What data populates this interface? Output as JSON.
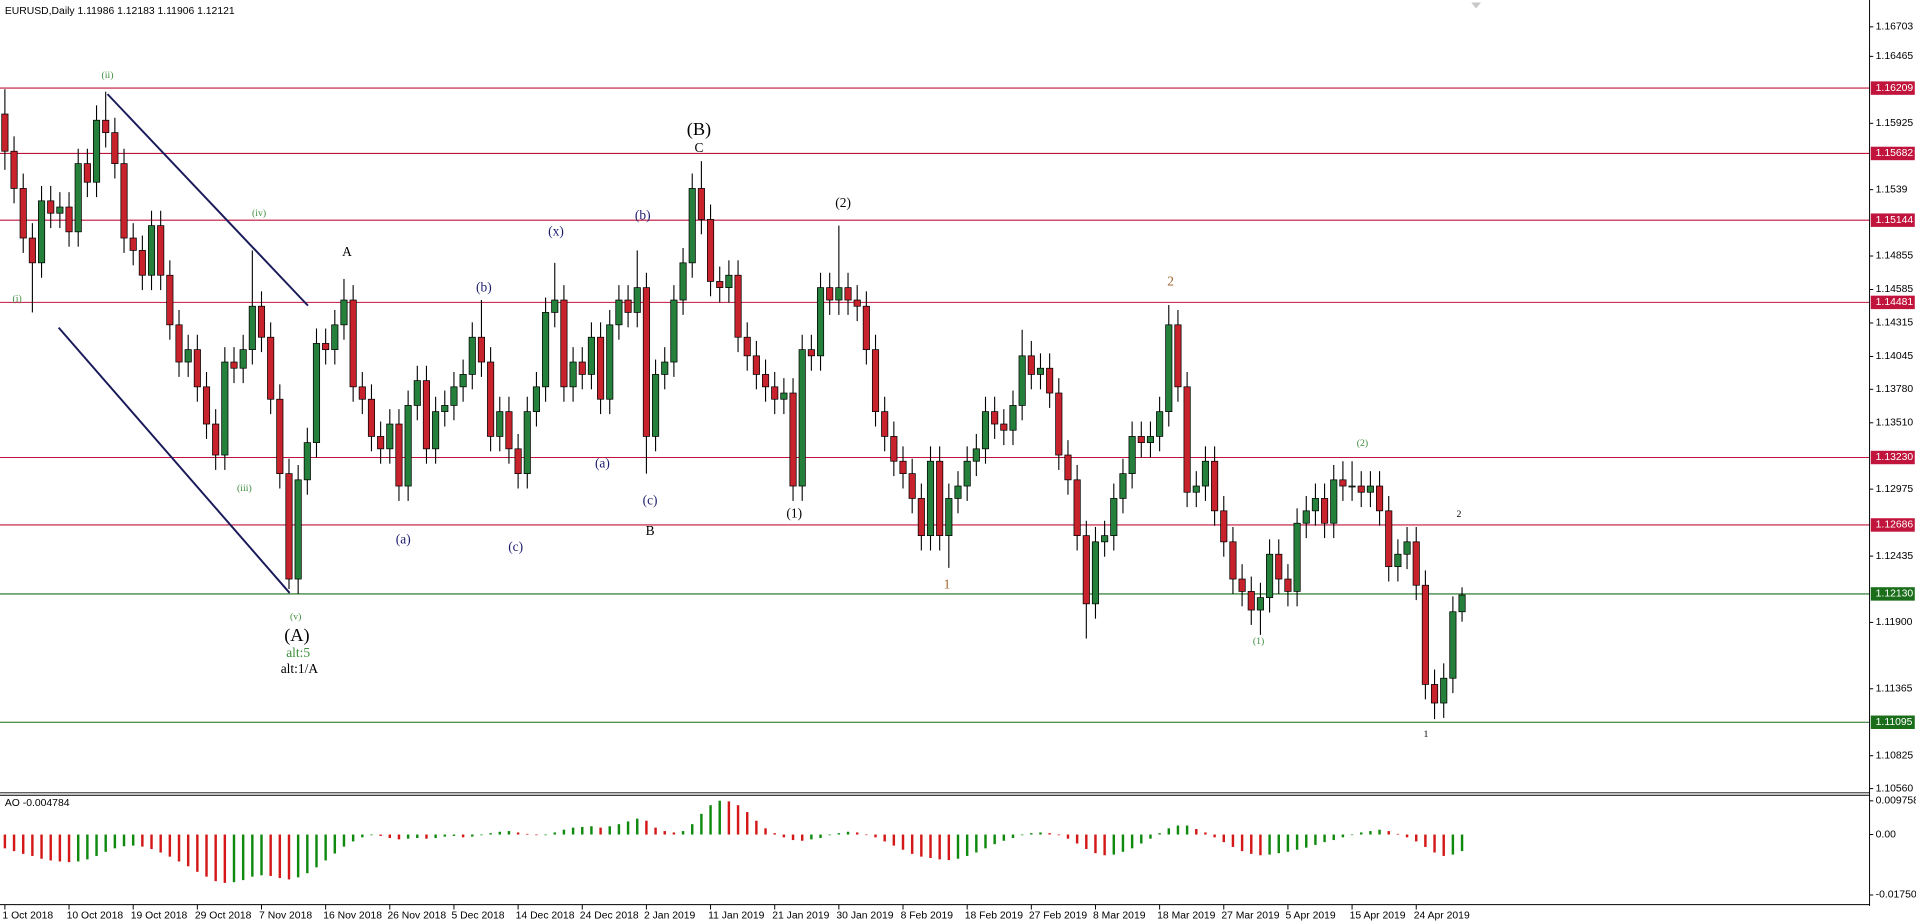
{
  "chart_data": [
    {
      "type": "candlestick",
      "title": "EURUSD,Daily",
      "up_color": "#24803a",
      "down_color": "#c8232c",
      "open": [
        1.16,
        1.157,
        1.154,
        1.15,
        1.148,
        1.153,
        1.152,
        1.1525,
        1.1505,
        1.156,
        1.1545,
        1.1595,
        1.1585,
        1.156,
        1.15,
        1.149,
        1.147,
        1.151,
        1.147,
        1.143,
        1.14,
        1.141,
        1.138,
        1.135,
        1.1325,
        1.14,
        1.1395,
        1.141,
        1.1445,
        1.142,
        1.137,
        1.131,
        1.1225,
        1.1305,
        1.1335,
        1.1415,
        1.141,
        1.143,
        1.145,
        1.138,
        1.137,
        1.134,
        1.133,
        1.135,
        1.13,
        1.1365,
        1.1385,
        1.133,
        1.136,
        1.1365,
        1.138,
        1.139,
        1.142,
        1.14,
        1.134,
        1.136,
        1.133,
        1.131,
        1.136,
        1.138,
        1.144,
        1.145,
        1.138,
        1.14,
        1.139,
        1.142,
        1.137,
        1.143,
        1.145,
        1.144,
        1.146,
        1.134,
        1.139,
        1.14,
        1.145,
        1.148,
        1.154,
        1.1515,
        1.1465,
        1.146,
        1.147,
        1.142,
        1.1405,
        1.139,
        1.138,
        1.137,
        1.1375,
        1.13,
        1.141,
        1.1405,
        1.146,
        1.145,
        1.146,
        1.145,
        1.1445,
        1.141,
        1.136,
        1.134,
        1.132,
        1.131,
        1.129,
        1.126,
        1.132,
        1.126,
        1.129,
        1.13,
        1.132,
        1.133,
        1.136,
        1.135,
        1.1345,
        1.1365,
        1.1405,
        1.139,
        1.1395,
        1.1375,
        1.1325,
        1.1305,
        1.126,
        1.1205,
        1.1255,
        1.126,
        1.129,
        1.131,
        1.134,
        1.1335,
        1.134,
        1.136,
        1.143,
        1.138,
        1.1295,
        1.13,
        1.132,
        1.128,
        1.1255,
        1.1225,
        1.1215,
        1.12,
        1.121,
        1.1245,
        1.1225,
        1.1215,
        1.127,
        1.128,
        1.129,
        1.127,
        1.1305,
        1.13,
        1.13,
        1.1295,
        1.13,
        1.128,
        1.1235,
        1.1245,
        1.1255,
        1.122,
        1.114,
        1.1125,
        1.1145,
        1.11986
      ],
      "high": [
        1.162,
        1.1582,
        1.1552,
        1.1512,
        1.1542,
        1.1542,
        1.1537,
        1.1537,
        1.1572,
        1.1572,
        1.1607,
        1.1618,
        1.1597,
        1.1572,
        1.1512,
        1.1502,
        1.1522,
        1.1522,
        1.1482,
        1.1442,
        1.1422,
        1.1422,
        1.1392,
        1.1362,
        1.1412,
        1.1412,
        1.1422,
        1.149,
        1.1457,
        1.1432,
        1.1382,
        1.1322,
        1.1317,
        1.1347,
        1.1427,
        1.1427,
        1.1442,
        1.1467,
        1.1462,
        1.1392,
        1.1382,
        1.1352,
        1.1362,
        1.1362,
        1.1377,
        1.1397,
        1.1397,
        1.1372,
        1.1377,
        1.1392,
        1.1402,
        1.1432,
        1.145,
        1.1412,
        1.1372,
        1.1372,
        1.1342,
        1.1372,
        1.1392,
        1.1452,
        1.148,
        1.1462,
        1.1412,
        1.1412,
        1.1432,
        1.1432,
        1.1442,
        1.1462,
        1.1462,
        1.149,
        1.1472,
        1.1402,
        1.1412,
        1.1462,
        1.1492,
        1.1552,
        1.1562,
        1.1527,
        1.1477,
        1.1482,
        1.1482,
        1.1432,
        1.1417,
        1.1402,
        1.1392,
        1.1387,
        1.1387,
        1.1422,
        1.1422,
        1.1472,
        1.1472,
        1.151,
        1.1472,
        1.1462,
        1.1457,
        1.1422,
        1.1372,
        1.1352,
        1.1332,
        1.1322,
        1.1302,
        1.1332,
        1.1332,
        1.1302,
        1.1312,
        1.1332,
        1.1342,
        1.1372,
        1.1372,
        1.1362,
        1.1377,
        1.1426,
        1.1417,
        1.1407,
        1.1407,
        1.1387,
        1.1337,
        1.1317,
        1.1272,
        1.1267,
        1.1272,
        1.1302,
        1.1322,
        1.1352,
        1.1352,
        1.1352,
        1.1372,
        1.1446,
        1.1442,
        1.1392,
        1.1312,
        1.1332,
        1.1332,
        1.1292,
        1.1267,
        1.1237,
        1.1227,
        1.1222,
        1.1257,
        1.1257,
        1.1237,
        1.1282,
        1.1292,
        1.1302,
        1.1302,
        1.1317,
        1.132,
        1.132,
        1.1312,
        1.1312,
        1.1312,
        1.1292,
        1.1257,
        1.1267,
        1.1267,
        1.1232,
        1.1152,
        1.1157,
        1.1211,
        1.12183
      ],
      "low": [
        1.1555,
        1.1528,
        1.1488,
        1.144,
        1.1468,
        1.1508,
        1.1508,
        1.1493,
        1.1493,
        1.1533,
        1.1533,
        1.1573,
        1.1548,
        1.1488,
        1.1478,
        1.1458,
        1.1458,
        1.1458,
        1.1418,
        1.1388,
        1.1388,
        1.1368,
        1.1338,
        1.1313,
        1.1313,
        1.1383,
        1.1383,
        1.1398,
        1.1408,
        1.1358,
        1.1298,
        1.1217,
        1.1213,
        1.1293,
        1.1323,
        1.1398,
        1.1398,
        1.1418,
        1.1368,
        1.1358,
        1.1328,
        1.1318,
        1.1318,
        1.1288,
        1.1288,
        1.1353,
        1.1318,
        1.1318,
        1.1348,
        1.1353,
        1.1368,
        1.1378,
        1.1388,
        1.1328,
        1.1328,
        1.1318,
        1.1298,
        1.1298,
        1.1348,
        1.1368,
        1.1428,
        1.1368,
        1.1368,
        1.1378,
        1.1378,
        1.1358,
        1.1358,
        1.1418,
        1.1428,
        1.1428,
        1.131,
        1.1328,
        1.1378,
        1.1388,
        1.1438,
        1.1468,
        1.1503,
        1.1453,
        1.1448,
        1.1448,
        1.1408,
        1.1393,
        1.1378,
        1.1368,
        1.1358,
        1.1358,
        1.1288,
        1.1288,
        1.1393,
        1.1393,
        1.1438,
        1.1438,
        1.1438,
        1.1433,
        1.1398,
        1.1348,
        1.1328,
        1.1308,
        1.1298,
        1.1278,
        1.1248,
        1.1248,
        1.1248,
        1.1234,
        1.1278,
        1.1288,
        1.1308,
        1.1318,
        1.1338,
        1.1333,
        1.1333,
        1.1353,
        1.1378,
        1.1378,
        1.1363,
        1.1313,
        1.1293,
        1.1248,
        1.1177,
        1.1193,
        1.1243,
        1.1248,
        1.1278,
        1.1298,
        1.1323,
        1.1323,
        1.1328,
        1.1348,
        1.1368,
        1.1283,
        1.1283,
        1.1288,
        1.1268,
        1.1243,
        1.1213,
        1.1203,
        1.1188,
        1.118,
        1.1198,
        1.1213,
        1.1203,
        1.1203,
        1.1258,
        1.1268,
        1.1258,
        1.1258,
        1.1288,
        1.1288,
        1.1283,
        1.1283,
        1.1268,
        1.1223,
        1.1223,
        1.1233,
        1.1208,
        1.1128,
        1.1112,
        1.1113,
        1.1133,
        1.11906
      ],
      "close": [
        1.157,
        1.154,
        1.15,
        1.148,
        1.153,
        1.152,
        1.1525,
        1.1505,
        1.156,
        1.1545,
        1.1595,
        1.1585,
        1.156,
        1.15,
        1.149,
        1.147,
        1.151,
        1.147,
        1.143,
        1.14,
        1.141,
        1.138,
        1.135,
        1.1325,
        1.14,
        1.1395,
        1.141,
        1.1445,
        1.142,
        1.137,
        1.131,
        1.1225,
        1.1305,
        1.1335,
        1.1415,
        1.141,
        1.143,
        1.145,
        1.138,
        1.137,
        1.134,
        1.133,
        1.135,
        1.13,
        1.1365,
        1.1385,
        1.133,
        1.136,
        1.1365,
        1.138,
        1.139,
        1.142,
        1.14,
        1.134,
        1.136,
        1.133,
        1.131,
        1.136,
        1.138,
        1.144,
        1.145,
        1.138,
        1.14,
        1.139,
        1.142,
        1.137,
        1.143,
        1.145,
        1.144,
        1.146,
        1.134,
        1.139,
        1.14,
        1.145,
        1.148,
        1.154,
        1.1515,
        1.1465,
        1.146,
        1.147,
        1.142,
        1.1405,
        1.139,
        1.138,
        1.137,
        1.1375,
        1.13,
        1.141,
        1.1405,
        1.146,
        1.145,
        1.146,
        1.145,
        1.1445,
        1.141,
        1.136,
        1.134,
        1.132,
        1.131,
        1.129,
        1.126,
        1.132,
        1.126,
        1.129,
        1.13,
        1.132,
        1.133,
        1.136,
        1.135,
        1.1345,
        1.1365,
        1.1405,
        1.139,
        1.1395,
        1.1375,
        1.1325,
        1.1305,
        1.126,
        1.1205,
        1.1255,
        1.126,
        1.129,
        1.131,
        1.134,
        1.1335,
        1.134,
        1.136,
        1.143,
        1.138,
        1.1295,
        1.13,
        1.132,
        1.128,
        1.1255,
        1.1225,
        1.1215,
        1.12,
        1.121,
        1.1245,
        1.1225,
        1.1215,
        1.127,
        1.128,
        1.129,
        1.127,
        1.1305,
        1.13,
        1.13,
        1.1295,
        1.13,
        1.128,
        1.1235,
        1.1245,
        1.1255,
        1.122,
        1.114,
        1.1125,
        1.1145,
        1.11986,
        1.12121
      ],
      "ylim": [
        1.10531,
        1.1689
      ],
      "yticks": [
        1.16703,
        1.16465,
        1.15925,
        1.1539,
        1.14855,
        1.14585,
        1.14315,
        1.14045,
        {
          "value": 1.1378,
          "label": "1.13780"
        },
        {
          "value": 1.1351,
          "label": "1.13510"
        },
        1.12975,
        1.12435,
        {
          "value": 1.119,
          "label": "1.11900"
        },
        1.11365,
        1.10825,
        {
          "value": 1.1056,
          "label": "1.10560"
        }
      ],
      "xticks": [
        {
          "value": 0,
          "label": "1 Oct 2018"
        },
        {
          "value": 7,
          "label": "10 Oct 2018"
        },
        {
          "value": 14,
          "label": "19 Oct 2018"
        },
        {
          "value": 21,
          "label": "29 Oct 2018"
        },
        {
          "value": 28,
          "label": "7 Nov 2018"
        },
        {
          "value": 35,
          "label": "16 Nov 2018"
        },
        {
          "value": 42,
          "label": "26 Nov 2018"
        },
        {
          "value": 49,
          "label": "5 Dec 2018"
        },
        {
          "value": 56,
          "label": "14 Dec 2018"
        },
        {
          "value": 63,
          "label": "24 Dec 2018"
        },
        {
          "value": 70,
          "label": "2 Jan 2019"
        },
        {
          "value": 77,
          "label": "11 Jan 2019"
        },
        {
          "value": 84,
          "label": "21 Jan 2019"
        },
        {
          "value": 91,
          "label": "30 Jan 2019"
        },
        {
          "value": 98,
          "label": "8 Feb 2019"
        },
        {
          "value": 105,
          "label": "18 Feb 2019"
        },
        {
          "value": 112,
          "label": "27 Feb 2019"
        },
        {
          "value": 119,
          "label": "8 Mar 2019"
        },
        {
          "value": 126,
          "label": "18 Mar 2019"
        },
        {
          "value": 133,
          "label": "27 Mar 2019"
        },
        {
          "value": 140,
          "label": "5 Apr 2019"
        },
        {
          "value": 147,
          "label": "15 Apr 2019"
        },
        {
          "value": 154,
          "label": "24 Apr 2019"
        }
      ],
      "levels": [
        {
          "value": 1.16209,
          "color": "#c0143c"
        },
        {
          "value": 1.15682,
          "color": "#c0143c"
        },
        {
          "value": 1.15144,
          "color": "#c0143c"
        },
        {
          "value": 1.14481,
          "color": "#c0143c"
        },
        {
          "value": 1.1323,
          "label": "1.13230",
          "color": "#c0143c"
        },
        {
          "value": 1.12686,
          "color": "#c0143c"
        },
        {
          "value": 1.1213,
          "label": "1.12130",
          "color": "#1a6e1a"
        },
        {
          "value": 1.11095,
          "color": "#1a6e1a"
        }
      ],
      "annotations": [
        {
          "text": "(i)",
          "color": "#3c8c3c"
        },
        {
          "text": "(ii)",
          "color": "#3c8c3c"
        },
        {
          "text": "(iii)",
          "color": "#3c8c3c"
        },
        {
          "text": "(iv)",
          "color": "#3c8c3c"
        },
        {
          "text": "(v)",
          "color": "#3c8c3c"
        },
        {
          "text": "(A)",
          "color": "#000000"
        },
        {
          "text": "alt:5",
          "color": "#3c8c3c"
        },
        {
          "text": "alt:1/A",
          "color": "#000000"
        },
        {
          "text": "A",
          "color": "#000000"
        },
        {
          "text": "(a)",
          "color": "#1c1c6c"
        },
        {
          "text": "(b)",
          "color": "#1c1c6c"
        },
        {
          "text": "(c)",
          "color": "#1c1c6c"
        },
        {
          "text": "(x)",
          "color": "#1c1c6c"
        },
        {
          "text": "(a)",
          "color": "#1c1c6c"
        },
        {
          "text": "(b)",
          "color": "#1c1c6c"
        },
        {
          "text": "(c)",
          "color": "#1c1c6c"
        },
        {
          "text": "B",
          "color": "#000000"
        },
        {
          "text": "(B)",
          "color": "#000000"
        },
        {
          "text": "C",
          "color": "#000000"
        },
        {
          "text": "(1)",
          "color": "#000000"
        },
        {
          "text": "(2)",
          "color": "#000000"
        },
        {
          "text": "1",
          "color": "#a0642c"
        },
        {
          "text": "2",
          "color": "#a0642c"
        },
        {
          "text": "(1)",
          "color": "#3c8c3c"
        },
        {
          "text": "(2)",
          "color": "#3c8c3c"
        },
        {
          "text": "1",
          "color": "#000000"
        },
        {
          "text": "2",
          "color": "#000000"
        }
      ]
    },
    {
      "type": "bar",
      "title": "AO",
      "up_color": "#0f8a0f",
      "down_color": "#d41818",
      "values": [
        -0.004,
        -0.0048,
        -0.0056,
        -0.0062,
        -0.007,
        -0.0075,
        -0.0078,
        -0.008,
        -0.0078,
        -0.0072,
        -0.0062,
        -0.005,
        -0.004,
        -0.0034,
        -0.0032,
        -0.0035,
        -0.0042,
        -0.0052,
        -0.0064,
        -0.0078,
        -0.0092,
        -0.0108,
        -0.0122,
        -0.0135,
        -0.014,
        -0.0138,
        -0.0132,
        -0.0122,
        -0.0118,
        -0.012,
        -0.0126,
        -0.013,
        -0.0124,
        -0.0112,
        -0.0095,
        -0.0075,
        -0.0055,
        -0.0035,
        -0.002,
        -0.0008,
        -0.0002,
        -0.0004,
        -0.001,
        -0.0014,
        -0.0012,
        -0.001,
        -0.0012,
        -0.001,
        -0.0006,
        -0.0004,
        -0.0008,
        -0.0006,
        -0.0002,
        0.0004,
        0.0008,
        0.001,
        0.0006,
        0.0002,
        -0.0002,
        -0.0002,
        0.0006,
        0.0014,
        0.002,
        0.0022,
        0.0024,
        0.002,
        0.0024,
        0.003,
        0.0038,
        0.0046,
        0.004,
        0.002,
        0.001,
        0.0006,
        0.001,
        0.003,
        0.006,
        0.0085,
        0.0098,
        0.0096,
        0.0085,
        0.0065,
        0.004,
        0.0018,
        0.0004,
        -0.0008,
        -0.0016,
        -0.0018,
        -0.0014,
        -0.001,
        -0.0002,
        0.0004,
        0.0008,
        0.0006,
        0,
        -0.0008,
        -0.002,
        -0.0032,
        -0.0044,
        -0.0056,
        -0.0064,
        -0.0068,
        -0.0072,
        -0.0074,
        -0.007,
        -0.0062,
        -0.0052,
        -0.004,
        -0.0028,
        -0.0018,
        -0.001,
        -0.0002,
        0.0004,
        0.0006,
        0.0004,
        -0.0002,
        -0.0012,
        -0.0026,
        -0.0042,
        -0.0054,
        -0.006,
        -0.0058,
        -0.005,
        -0.004,
        -0.0026,
        -0.0012,
        0.0004,
        0.0018,
        0.0026,
        0.0026,
        0.0016,
        0.0006,
        -0.0008,
        -0.0022,
        -0.0036,
        -0.0048,
        -0.0056,
        -0.006,
        -0.0058,
        -0.0054,
        -0.005,
        -0.0044,
        -0.0038,
        -0.003,
        -0.0022,
        -0.0016,
        -0.0008,
        0,
        0.0006,
        0.001,
        0.0014,
        0.001,
        0.0002,
        -0.0008,
        -0.002,
        -0.0036,
        -0.0052,
        -0.0062,
        -0.0058,
        -0.004784
      ],
      "ylim": [
        -0.0196,
        0.0112
      ],
      "yticks": [
        0.009758,
        {
          "value": 0,
          "label": "0.00"
        },
        -0.017503
      ]
    }
  ]
}
